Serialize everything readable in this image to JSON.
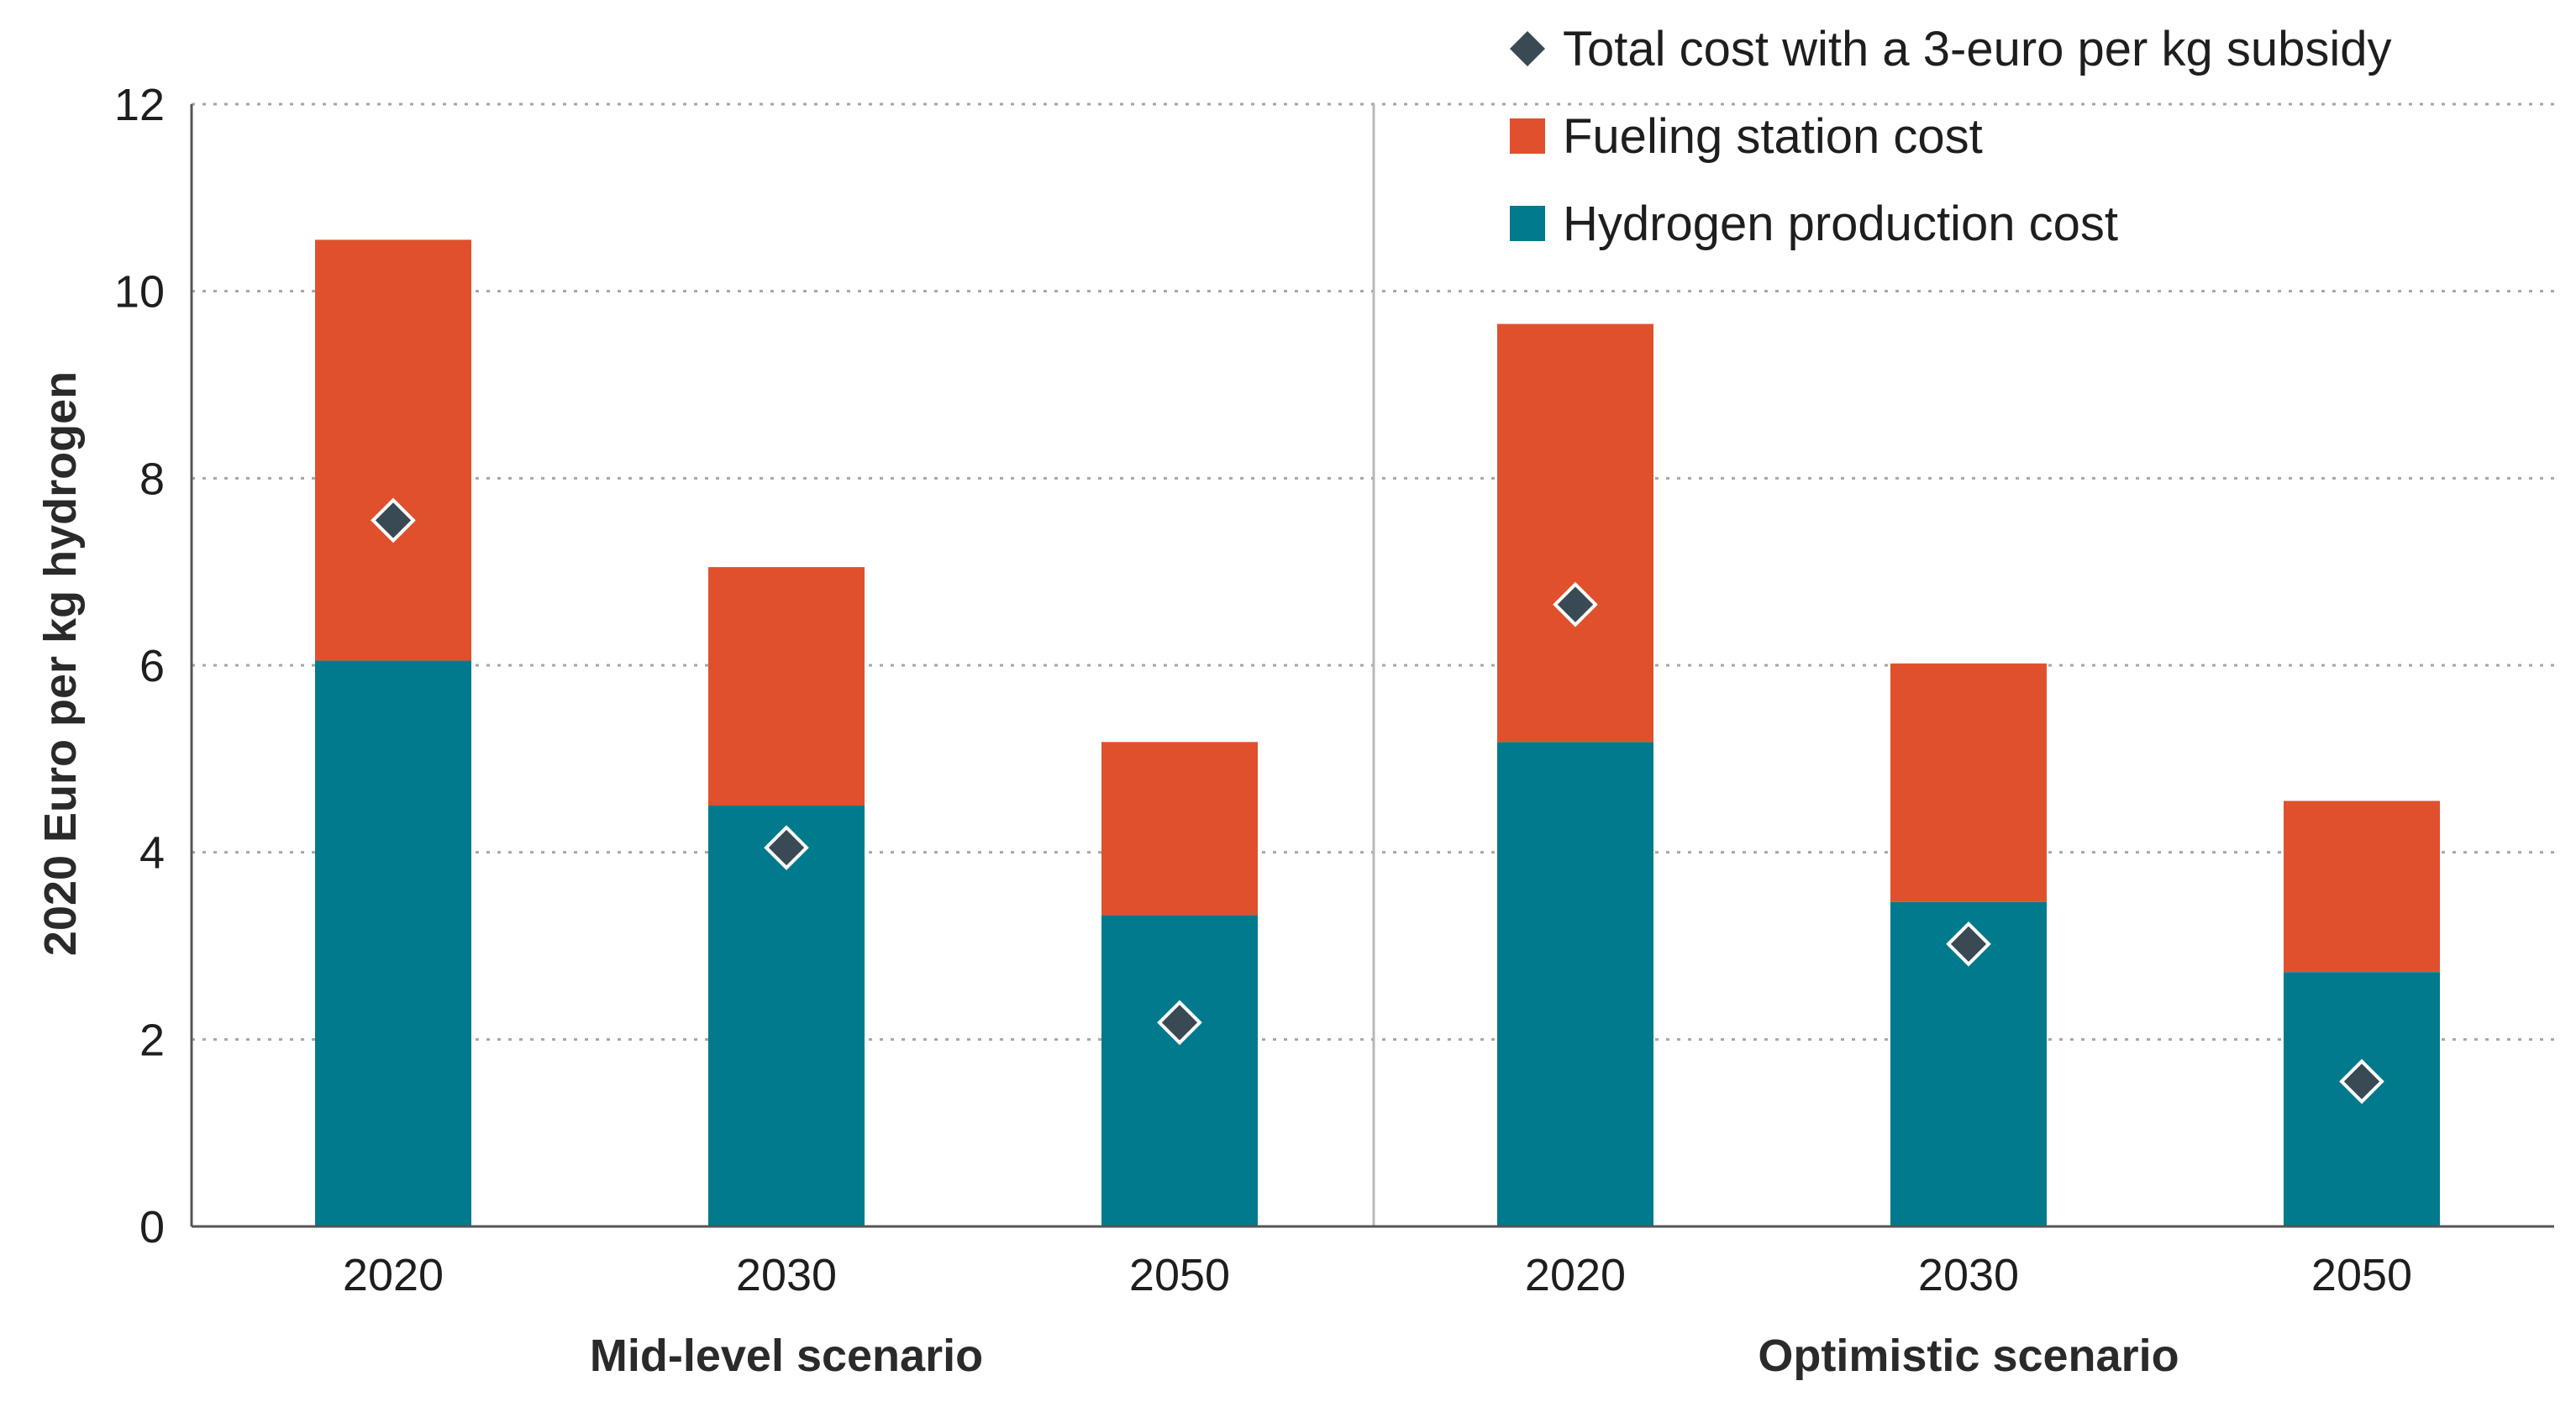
{
  "chart_data": {
    "type": "bar",
    "stacked": true,
    "ylabel": "2020 Euro per kg hydrogen",
    "ylim": [
      0,
      12
    ],
    "yticks": [
      0,
      2,
      4,
      6,
      8,
      10,
      12
    ],
    "grid": true,
    "legend_position": "top-right",
    "groups": [
      {
        "name": "Mid-level scenario",
        "categories": [
          "2020",
          "2030",
          "2050"
        ]
      },
      {
        "name": "Optimistic scenario",
        "categories": [
          "2020",
          "2030",
          "2050"
        ]
      }
    ],
    "series": [
      {
        "name": "Hydrogen production cost",
        "kind": "bar",
        "color": "#007a8c",
        "values": [
          6.05,
          4.5,
          3.33,
          5.18,
          3.47,
          2.72
        ]
      },
      {
        "name": "Fueling station cost",
        "kind": "bar",
        "color": "#e0502d",
        "values": [
          4.5,
          2.55,
          1.85,
          4.47,
          2.55,
          1.83
        ]
      },
      {
        "name": "Total cost with a 3-euro per kg subsidy",
        "kind": "marker",
        "color": "#3a4a54",
        "values": [
          7.55,
          4.05,
          2.18,
          6.65,
          3.02,
          1.55
        ]
      }
    ],
    "legend_order": [
      2,
      1,
      0
    ]
  }
}
